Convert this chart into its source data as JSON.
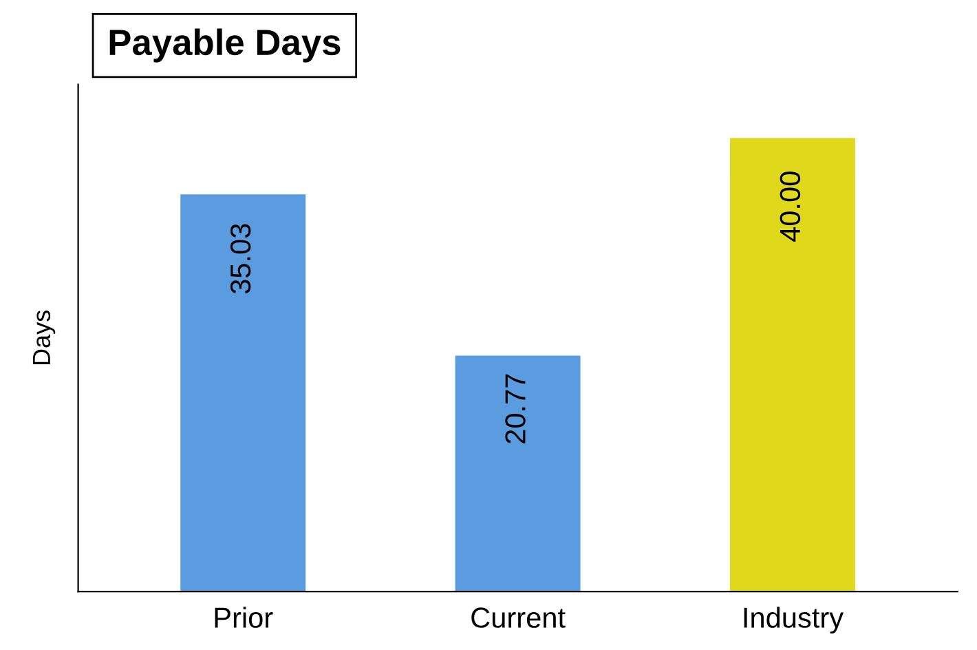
{
  "chart_data": {
    "type": "bar",
    "title": "Payable Days",
    "ylabel": "Days",
    "categories": [
      "Prior",
      "Current",
      "Industry"
    ],
    "values": [
      35.03,
      20.77,
      40.0
    ],
    "colors": [
      "#5b9be0",
      "#5b9be0",
      "#e0d81a"
    ],
    "value_labels": [
      "35.03",
      "20.77",
      "40.00"
    ]
  }
}
